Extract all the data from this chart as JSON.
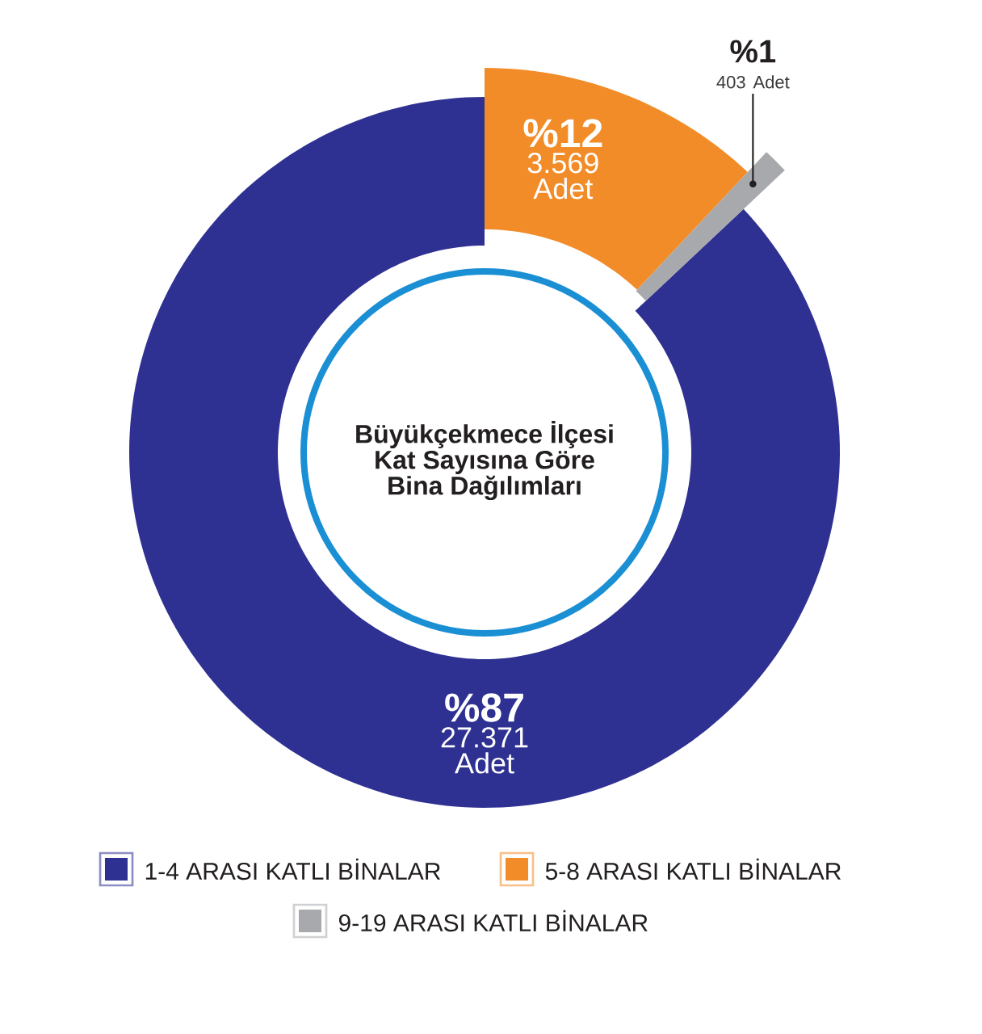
{
  "chart_data": {
    "type": "donut",
    "title": "Büyükçekmece İlçesi Kat Sayısına Göre Bina Dağılımları",
    "categories": [
      "1-4 ARASI KATLI BİNALAR",
      "5-8 ARASI KATLI BİNALAR",
      "9-19 ARASI KATLI BİNALAR"
    ],
    "values": [
      87,
      12,
      1
    ],
    "colors": [
      "#2e3192",
      "#f28c28",
      "#a7a9ac"
    ],
    "value_labels": [
      "%87",
      "%12",
      "%1"
    ],
    "annotations": [
      "27.371 Adet",
      "3.569 Adet",
      "403 Adet"
    ],
    "legend": "bottom"
  }
}
